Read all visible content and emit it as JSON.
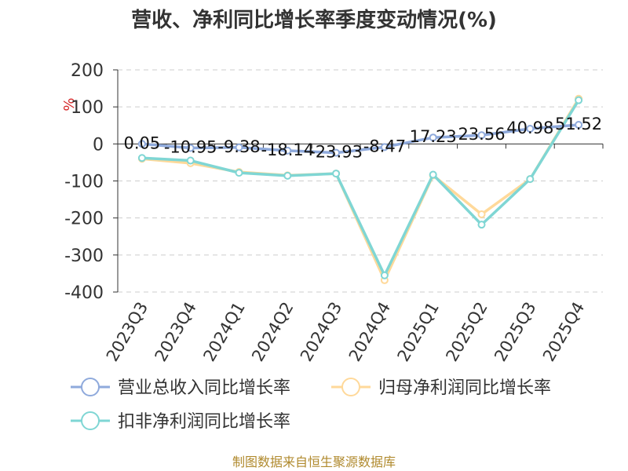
{
  "chart_data": {
    "type": "line",
    "title": "营收、净利同比增长率季度变动情况(%)",
    "ylabel": "%",
    "xlabel": "",
    "categories": [
      "2023Q3",
      "2023Q4",
      "2024Q1",
      "2024Q2",
      "2024Q3",
      "2024Q4",
      "2025Q1",
      "2025Q2",
      "2025Q3",
      "2025Q4"
    ],
    "ylim": [
      -400,
      200
    ],
    "yticks": [
      200,
      100,
      0,
      -100,
      -200,
      -300,
      -400
    ],
    "grid": true,
    "legend_position": "bottom",
    "series": [
      {
        "name": "营业总收入同比增长率",
        "color": "#8faadc",
        "values": [
          0.05,
          -10.95,
          -9.38,
          -18.14,
          -23.93,
          -8.47,
          17.23,
          23.56,
          40.98,
          51.52
        ],
        "labels": [
          "0.05",
          "-10.95",
          "-9.38",
          "-18.14",
          "-23.93",
          "-8.47",
          "17.23",
          "23.56",
          "40.98",
          "51.52"
        ]
      },
      {
        "name": "归母净利润同比增长率",
        "color": "#ffd99a",
        "values": [
          -40,
          -52,
          -76,
          -85,
          -80,
          -368,
          -85,
          -190,
          -95,
          122
        ]
      },
      {
        "name": "扣非净利润同比增长率",
        "color": "#7fd6d4",
        "values": [
          -38,
          -45,
          -78,
          -86,
          -80,
          -355,
          -83,
          -218,
          -95,
          118
        ]
      }
    ]
  },
  "footer": "制图数据来自恒生聚源数据库"
}
